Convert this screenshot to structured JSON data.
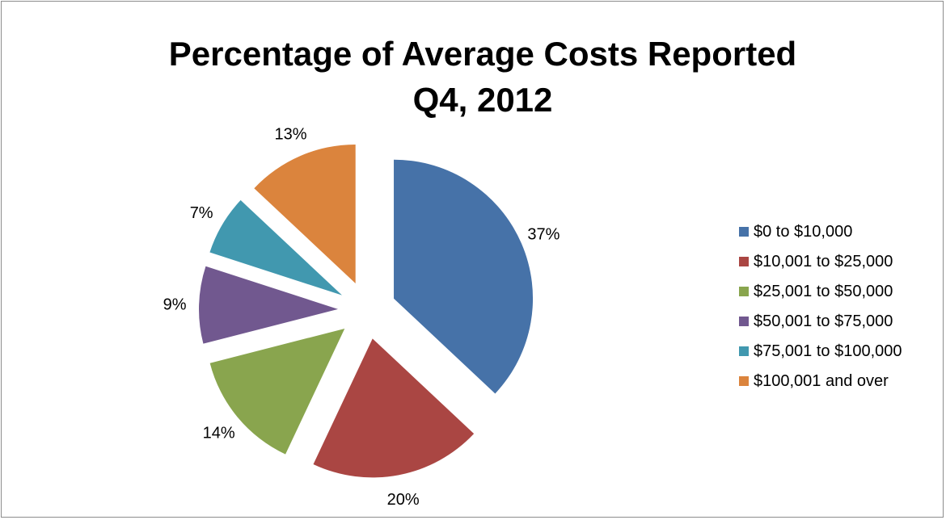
{
  "chart_data": {
    "type": "pie",
    "title": "Percentage of Average Costs Reported",
    "subtitle": "Q4, 2012",
    "categories": [
      "$0 to $10,000",
      "$10,001 to $25,000",
      "$25,001 to $50,000",
      "$50,001 to $75,000",
      "$75,001 to $100,000",
      "$100,001 and over"
    ],
    "values": [
      37,
      20,
      14,
      9,
      7,
      13
    ],
    "data_labels": [
      "37%",
      "20%",
      "14%",
      "9%",
      "7%",
      "13%"
    ],
    "colors": [
      "#4672a8",
      "#aa4643",
      "#89a54e",
      "#71588f",
      "#4198af",
      "#db843d"
    ],
    "exploded": true,
    "legend_position": "right"
  }
}
